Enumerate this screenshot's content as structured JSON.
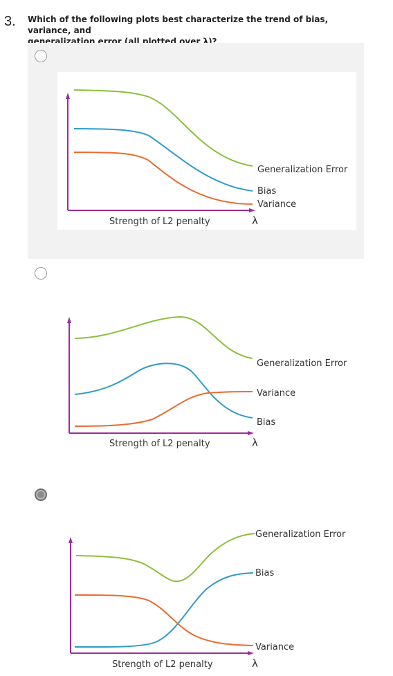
{
  "question": {
    "number": "3.",
    "text_line1": "Which of the following plots best characterize the trend of bias, variance, and",
    "text_line2": "generalization error (all plotted over λ)?"
  },
  "colors": {
    "generalization_error": "#8dbf3c",
    "bias": "#2f9bc9",
    "variance": "#ea6b2f",
    "axis": "#9b2c9f"
  },
  "options": [
    {
      "id": "A",
      "selected": false,
      "x_label": "Strength of L2 penalty",
      "lambda": "λ",
      "labels": {
        "generalization_error": "Generalization Error",
        "bias": "Bias",
        "variance": "Variance"
      }
    },
    {
      "id": "B",
      "selected": false,
      "x_label": "Strength of L2 penalty",
      "lambda": "λ",
      "labels": {
        "generalization_error": "Generalization Error",
        "variance": "Variance",
        "bias": "Bias"
      }
    },
    {
      "id": "C",
      "selected": true,
      "x_label": "Strength of L2 penalty",
      "lambda": "λ",
      "labels": {
        "generalization_error": "Generalization Error",
        "bias": "Bias",
        "variance": "Variance"
      }
    }
  ]
}
